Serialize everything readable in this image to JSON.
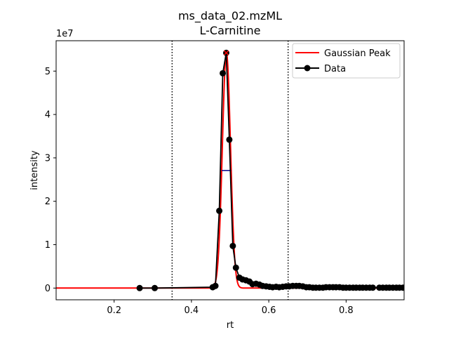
{
  "chart_data": {
    "type": "line",
    "title_line1": "ms_data_02.mzML",
    "title_line2": "L-Carnitine",
    "xlabel": "rt",
    "ylabel": "intensity",
    "y_multiplier_label": "1e7",
    "xlim": [
      0.05,
      0.95
    ],
    "ylim": [
      -0.27,
      5.7
    ],
    "x_ticks": [
      0.2,
      0.4,
      0.6,
      0.8
    ],
    "x_tick_labels": [
      "0.2",
      "0.4",
      "0.6",
      "0.8"
    ],
    "y_ticks": [
      0,
      1,
      2,
      3,
      4,
      5
    ],
    "y_tick_labels": [
      "0",
      "1",
      "2",
      "3",
      "4",
      "5"
    ],
    "y_units_note": "values in units of 1e7",
    "vlines": [
      0.35,
      0.65
    ],
    "gaussian": {
      "name": "Gaussian Peak",
      "amplitude": 5.42,
      "center": 0.4905,
      "sigma": 0.0105,
      "color": "#ff0000"
    },
    "fwhm_line": {
      "x": [
        0.4782,
        0.5028
      ],
      "y": 2.71,
      "color": "#00008b"
    },
    "apex_marker": {
      "x": 0.49,
      "y": 5.42,
      "color": "#ff0000"
    },
    "data_series": {
      "name": "Data",
      "color": "#000000",
      "x": [
        0.266,
        0.305,
        0.455,
        0.462,
        0.472,
        0.481,
        0.49,
        0.498,
        0.507,
        0.515,
        0.524,
        0.532,
        0.541,
        0.55,
        0.558,
        0.567,
        0.576,
        0.584,
        0.593,
        0.602,
        0.61,
        0.619,
        0.627,
        0.636,
        0.645,
        0.653,
        0.662,
        0.671,
        0.679,
        0.688,
        0.697,
        0.705,
        0.714,
        0.722,
        0.731,
        0.74,
        0.748,
        0.757,
        0.766,
        0.774,
        0.783,
        0.792,
        0.8,
        0.809,
        0.818,
        0.826,
        0.835,
        0.843,
        0.852,
        0.861,
        0.869,
        0.886,
        0.895,
        0.904,
        0.912,
        0.921,
        0.93,
        0.938,
        0.947
      ],
      "y": [
        0.0,
        0.0,
        0.02,
        0.05,
        1.78,
        4.95,
        5.42,
        3.42,
        0.97,
        0.47,
        0.24,
        0.2,
        0.18,
        0.15,
        0.09,
        0.1,
        0.08,
        0.05,
        0.04,
        0.03,
        0.02,
        0.03,
        0.02,
        0.03,
        0.04,
        0.04,
        0.05,
        0.05,
        0.05,
        0.04,
        0.02,
        0.02,
        0.01,
        0.01,
        0.01,
        0.01,
        0.02,
        0.02,
        0.02,
        0.02,
        0.02,
        0.01,
        0.01,
        0.01,
        0.01,
        0.01,
        0.01,
        0.01,
        0.01,
        0.01,
        0.01,
        0.01,
        0.01,
        0.01,
        0.01,
        0.01,
        0.01,
        0.01,
        0.01
      ]
    },
    "legend": {
      "placement": "upper-right",
      "entries": [
        {
          "label": "Gaussian Peak",
          "color": "#ff0000",
          "marker": "none"
        },
        {
          "label": "Data",
          "color": "#000000",
          "marker": "circle"
        }
      ]
    }
  }
}
